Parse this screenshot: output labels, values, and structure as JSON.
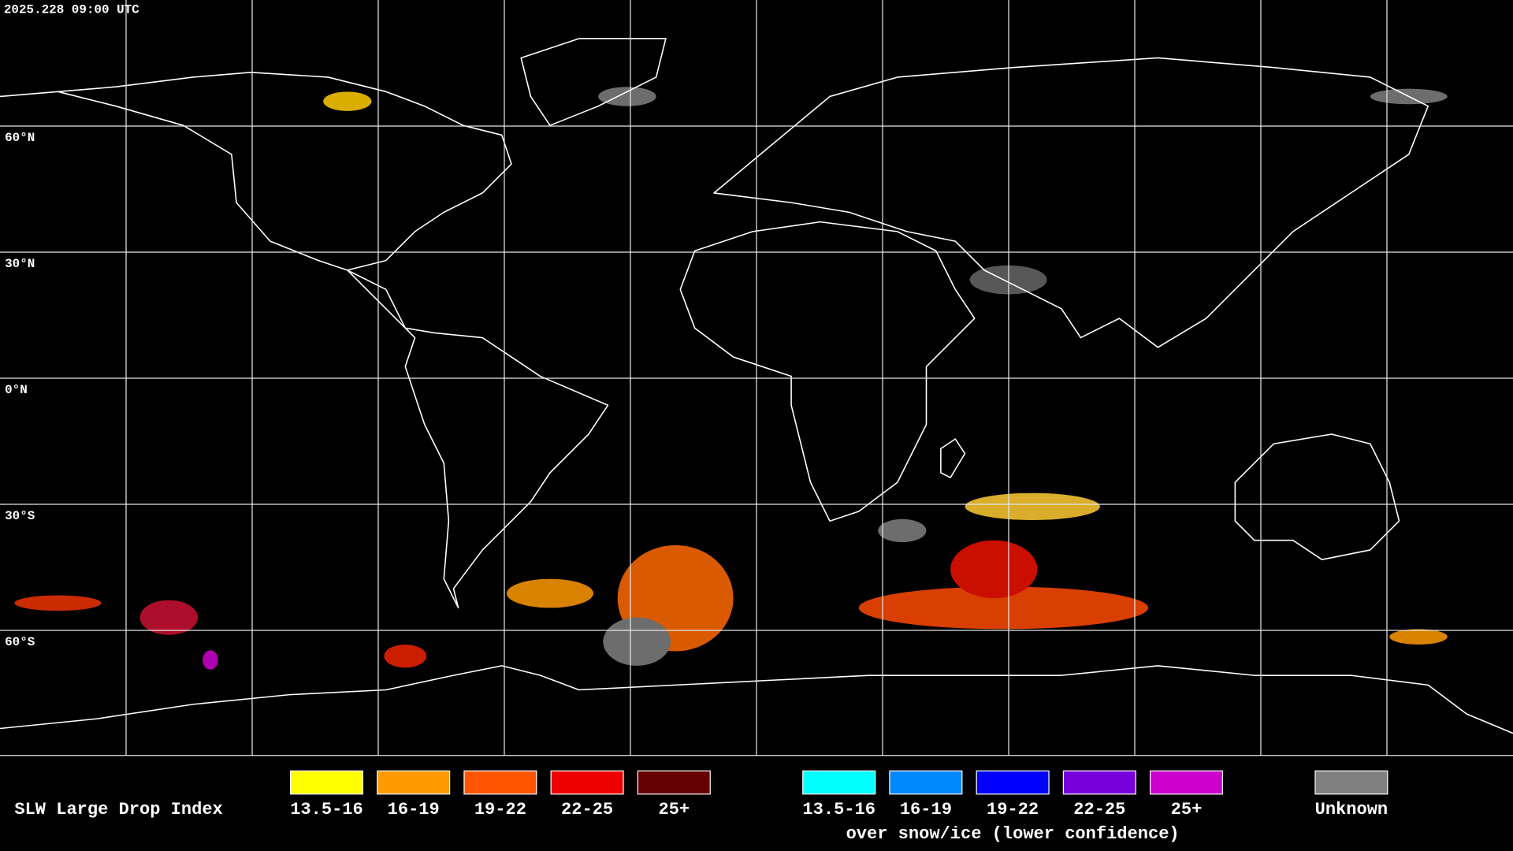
{
  "header": {
    "timestamp": "2025.228 09:00 UTC"
  },
  "map": {
    "latitude_labels": [
      "60°N",
      "30°N",
      "0°N",
      "30°S",
      "60°S"
    ]
  },
  "legend": {
    "title": "SLW Large Drop Index",
    "groups": [
      {
        "items": [
          {
            "label": "13.5-16",
            "color": "#ffff00"
          },
          {
            "label": "16-19",
            "color": "#ff9900"
          },
          {
            "label": "19-22",
            "color": "#ff5500"
          },
          {
            "label": "22-25",
            "color": "#ee0000"
          },
          {
            "label": "25+",
            "color": "#660000"
          }
        ]
      },
      {
        "items": [
          {
            "label": "13.5-16",
            "color": "#00ffff"
          },
          {
            "label": "16-19",
            "color": "#0088ff"
          },
          {
            "label": "19-22",
            "color": "#0000ff"
          },
          {
            "label": "22-25",
            "color": "#7700dd"
          },
          {
            "label": "25+",
            "color": "#cc00cc"
          }
        ],
        "caption": "over snow/ice (lower confidence)"
      },
      {
        "items": [
          {
            "label": "Unknown",
            "color": "#808080"
          }
        ]
      }
    ]
  }
}
